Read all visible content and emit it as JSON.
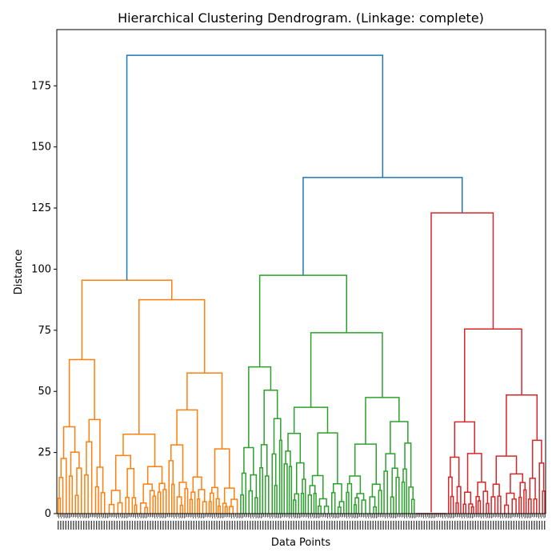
{
  "chart_data": {
    "type": "dendrogram",
    "title": "Hierarchical Clustering Dendrogram. (Linkage: complete)",
    "xlabel": "Data Points",
    "ylabel": "Distance",
    "ylim": [
      0,
      198
    ],
    "yticks": [
      0,
      25,
      50,
      75,
      100,
      125,
      150,
      175
    ],
    "colors": {
      "above_threshold": "#1f77b4",
      "cluster_1": "#ff7f0e",
      "cluster_2": "#2ca02c",
      "cluster_3": "#d62728"
    },
    "top_links": [
      {
        "name": "root",
        "height": 187.5,
        "left": "cluster_1",
        "right": "cluster_2_3"
      },
      {
        "name": "cluster_2_3",
        "height": 137.5,
        "left": "cluster_2",
        "right": "cluster_3"
      }
    ],
    "clusters": [
      {
        "name": "cluster_1",
        "color": "cluster_1",
        "height": 95.5,
        "sub": [
          {
            "height": 63,
            "children": [
              35.5,
              38.5
            ]
          },
          {
            "height": 87.5,
            "children": [
              32.5,
              57.5
            ]
          }
        ]
      },
      {
        "name": "cluster_2",
        "color": "cluster_2",
        "height": 97.5,
        "sub": [
          {
            "height": 60,
            "children": [
              27,
              50.5
            ]
          },
          {
            "height": 74,
            "children": [
              43.5,
              47.5
            ]
          }
        ]
      },
      {
        "name": "cluster_3",
        "color": "cluster_3",
        "height": 123,
        "sub": [
          {
            "height": 0.5,
            "children": [
              0,
              0
            ]
          },
          {
            "height": 75.5,
            "children": [
              37.5,
              48.5
            ]
          }
        ]
      }
    ]
  }
}
